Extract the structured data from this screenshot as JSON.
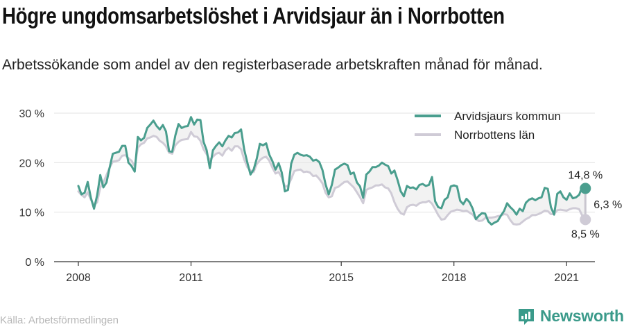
{
  "title": "Högre ungdomsarbetslöshet i Arvidsjaur än i Norrbotten",
  "subtitle": "Arbetssökande som andel av den registerbaserade arbetskraften månad för månad.",
  "source": "Källa: Arbetsförmedlingen",
  "brand": {
    "name": "Newsworthy",
    "icon": "newsworthy-logo-icon",
    "color": "#3a9a8a"
  },
  "chart_data": {
    "type": "line",
    "x_start": "2008-01",
    "x_end": "2021-04",
    "x_ticks": [
      "2008",
      "2011",
      "2015",
      "2018",
      "2021"
    ],
    "y_ticks": [
      "0 %",
      "10 %",
      "20 %",
      "30 %"
    ],
    "ylim": [
      0,
      30
    ],
    "grid": true,
    "legend_position": "top-right",
    "series": [
      {
        "name": "Arvidsjaurs kommun",
        "color": "#4a9e8e",
        "values": [
          15.3,
          13.6,
          13.9,
          16.1,
          12.9,
          10.7,
          13.4,
          17.5,
          15.0,
          16.0,
          19.0,
          21.8,
          22.0,
          22.2,
          23.4,
          23.4,
          20.0,
          19.3,
          18.2,
          25.2,
          24.5,
          25.0,
          27.0,
          27.7,
          28.5,
          27.4,
          26.7,
          27.6,
          26.3,
          22.3,
          22.2,
          25.5,
          27.8,
          27.0,
          27.3,
          27.4,
          29.2,
          27.7,
          28.7,
          28.6,
          24.2,
          22.5,
          18.9,
          22.5,
          23.4,
          24.1,
          23.3,
          24.5,
          25.4,
          25.1,
          26.0,
          26.1,
          26.7,
          22.6,
          20.0,
          17.6,
          18.6,
          20.8,
          23.8,
          23.5,
          23.9,
          21.6,
          20.3,
          18.6,
          19.9,
          18.0,
          14.2,
          14.5,
          19.8,
          21.6,
          22.0,
          21.6,
          21.4,
          21.5,
          21.2,
          20.4,
          20.6,
          20.1,
          18.5,
          15.6,
          13.6,
          15.5,
          18.6,
          19.0,
          19.5,
          19.8,
          19.5,
          17.7,
          18.0,
          16.0,
          15.2,
          12.9,
          17.6,
          18.2,
          19.1,
          19.1,
          19.4,
          20.0,
          19.6,
          19.3,
          17.8,
          18.4,
          16.5,
          14.2,
          13.2,
          15.3,
          14.9,
          15.0,
          14.6,
          15.5,
          15.7,
          15.3,
          15.5,
          17.1,
          12.2,
          11.0,
          10.8,
          12.5,
          13.0,
          15.2,
          15.4,
          15.2,
          12.3,
          11.6,
          12.7,
          12.0,
          10.7,
          8.6,
          9.3,
          9.8,
          9.7,
          8.1,
          7.5,
          7.9,
          8.2,
          9.3,
          10.2,
          11.8,
          11.0,
          10.4,
          9.5,
          10.7,
          10.2,
          11.9,
          12.5,
          12.8,
          12.4,
          12.8,
          13.0,
          14.9,
          14.7,
          11.0,
          9.5,
          13.7,
          14.2,
          13.0,
          12.5,
          13.8,
          12.8,
          13.0,
          13.5,
          15.2,
          14.8
        ]
      },
      {
        "name": "Norrbottens län",
        "color": "#cfcbd6",
        "values": [
          14.2,
          13.5,
          13.0,
          14.0,
          12.5,
          11.4,
          12.0,
          15.0,
          16.0,
          17.5,
          19.0,
          20.2,
          20.3,
          20.5,
          21.4,
          21.5,
          20.9,
          20.4,
          19.3,
          23.0,
          23.7,
          24.0,
          24.9,
          25.1,
          25.4,
          25.2,
          24.4,
          24.0,
          23.3,
          22.0,
          21.8,
          23.5,
          24.2,
          24.6,
          24.7,
          24.8,
          26.2,
          25.3,
          25.2,
          24.4,
          22.7,
          21.7,
          20.5,
          21.2,
          21.8,
          22.0,
          21.4,
          22.5,
          23.0,
          22.4,
          23.3,
          23.3,
          22.7,
          20.6,
          19.1,
          18.4,
          18.1,
          19.7,
          20.5,
          21.0,
          21.2,
          20.4,
          19.0,
          17.8,
          18.1,
          17.0,
          15.2,
          15.3,
          16.7,
          18.3,
          18.5,
          18.6,
          18.1,
          18.2,
          18.0,
          17.3,
          17.4,
          16.7,
          15.8,
          13.9,
          13.0,
          13.2,
          14.9,
          15.1,
          15.6,
          16.1,
          16.2,
          15.6,
          15.0,
          14.0,
          13.0,
          11.8,
          14.5,
          14.8,
          15.0,
          15.4,
          15.4,
          15.6,
          15.0,
          14.8,
          13.8,
          12.0,
          10.7,
          9.8,
          9.5,
          11.0,
          11.4,
          11.5,
          11.3,
          11.8,
          12.0,
          12.0,
          12.3,
          11.7,
          10.6,
          9.4,
          8.5,
          8.6,
          9.4,
          10.1,
          10.3,
          10.5,
          10.4,
          10.2,
          10.3,
          9.9,
          9.5,
          8.6,
          8.2,
          8.3,
          8.8,
          8.9,
          8.9,
          9.0,
          9.2,
          9.3,
          9.6,
          9.5,
          8.4,
          7.6,
          7.5,
          7.6,
          8.1,
          8.6,
          8.9,
          9.4,
          9.4,
          9.6,
          9.9,
          10.3,
          10.2,
          9.6,
          9.6,
          10.4,
          10.5,
          10.4,
          10.3,
          10.6,
          10.8,
          10.8,
          10.6,
          9.3,
          8.5
        ]
      }
    ],
    "end_labels": {
      "Arvidsjaurs kommun": "14,8 %",
      "Norrbottens län": "8,5 %",
      "difference": "6,3 %"
    }
  }
}
